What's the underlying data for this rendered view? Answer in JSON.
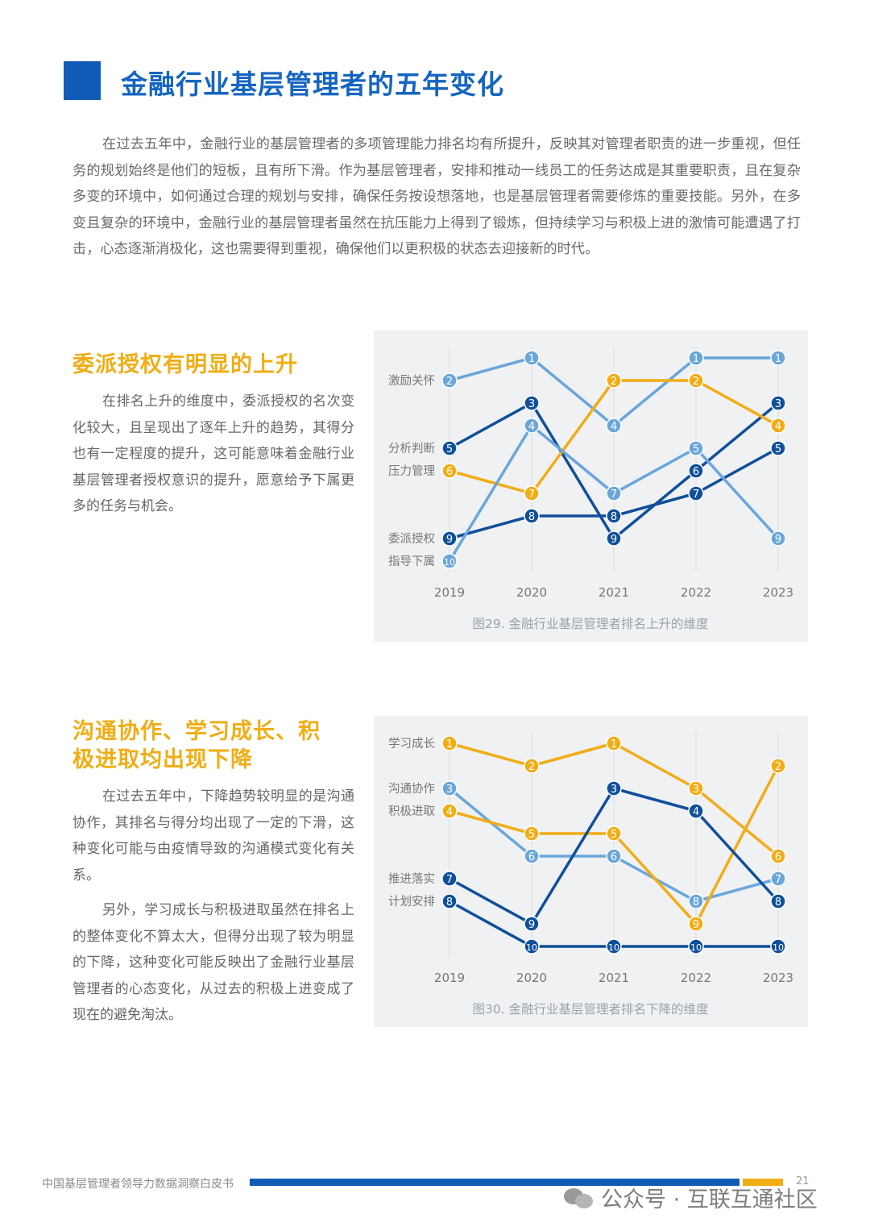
{
  "header": {
    "title": "金融行业基层管理者的五年变化"
  },
  "intro": "在过去五年中，金融行业的基层管理者的多项管理能力排名均有所提升，反映其对管理者职责的进一步重视，但任务的规划始终是他们的短板，且有所下滑。作为基层管理者，安排和推动一线员工的任务达成是其重要职责，且在复杂多变的环境中，如何通过合理的规划与安排，确保任务按设想落地，也是基层管理者需要修炼的重要技能。另外，在多变且复杂的环境中，金融行业的基层管理者虽然在抗压能力上得到了锻炼，但持续学习与积极上进的激情可能遭遇了打击，心态逐渐消极化，这也需要得到重视，确保他们以更积极的状态去迎接新的时代。",
  "section1": {
    "title": "委派授权有明显的上升",
    "paragraphs": [
      "在排名上升的维度中，委派授权的名次变化较大，且呈现出了逐年上升的趋势，其得分也有一定程度的提升，这可能意味着金融行业基层管理者授权意识的提升，愿意给予下属更多的任务与机会。"
    ]
  },
  "section2": {
    "title_line1": "沟通协作、学习成长、积",
    "title_line2": "极进取均出现下降",
    "paragraphs": [
      "在过去五年中，下降趋势较明显的是沟通协作，其排名与得分均出现了一定的下滑，这种变化可能与由疫情导致的沟通模式变化有关系。",
      "另外，学习成长与积极进取虽然在排名上的整体变化不算太大，但得分出现了较为明显的下降，这种变化可能反映出了金融行业基层管理者的心态变化，从过去的积极上进变成了现在的避免淘汰。"
    ]
  },
  "colors": {
    "light_blue": "#6aa6da",
    "dark_blue": "#104f9a",
    "yellow": "#f2ac16"
  },
  "chart_data": [
    {
      "type": "line",
      "caption": "图29. 金融行业基层管理者排名上升的维度",
      "x": [
        "2019",
        "2020",
        "2021",
        "2022",
        "2023"
      ],
      "y_scale": "rank (1 = top)",
      "ylim": [
        1,
        10
      ],
      "series": [
        {
          "name": "激励关怀",
          "color": "#6aa6da",
          "values": [
            2,
            1,
            4,
            1,
            1
          ]
        },
        {
          "name": "分析判断",
          "color": "#104f9a",
          "values": [
            5,
            3,
            9,
            6,
            3
          ]
        },
        {
          "name": "压力管理",
          "color": "#f2ac16",
          "values": [
            6,
            7,
            2,
            2,
            4
          ]
        },
        {
          "name": "委派授权",
          "color": "#104f9a",
          "values": [
            9,
            8,
            8,
            7,
            5
          ]
        },
        {
          "name": "指导下属",
          "color": "#6aa6da",
          "values": [
            10,
            4,
            7,
            5,
            9
          ]
        }
      ]
    },
    {
      "type": "line",
      "caption": "图30. 金融行业基层管理者排名下降的维度",
      "x": [
        "2019",
        "2020",
        "2021",
        "2022",
        "2023"
      ],
      "y_scale": "rank (1 = top)",
      "ylim": [
        1,
        10
      ],
      "series": [
        {
          "name": "学习成长",
          "color": "#f2ac16",
          "values": [
            1,
            2,
            1,
            3,
            6
          ]
        },
        {
          "name": "沟通协作",
          "color": "#6aa6da",
          "values": [
            3,
            6,
            6,
            8,
            7
          ]
        },
        {
          "name": "积极进取",
          "color": "#f2ac16",
          "values": [
            4,
            5,
            5,
            9,
            2
          ]
        },
        {
          "name": "推进落实",
          "color": "#104f9a",
          "values": [
            7,
            9,
            3,
            4,
            8
          ]
        },
        {
          "name": "计划安排",
          "color": "#104f9a",
          "values": [
            8,
            10,
            10,
            10,
            10
          ]
        }
      ]
    }
  ],
  "footer": {
    "doc_title": "中国基层管理者领导力数据洞察白皮书",
    "page": "21",
    "watermark": "公众号 · 互联互通社区"
  }
}
